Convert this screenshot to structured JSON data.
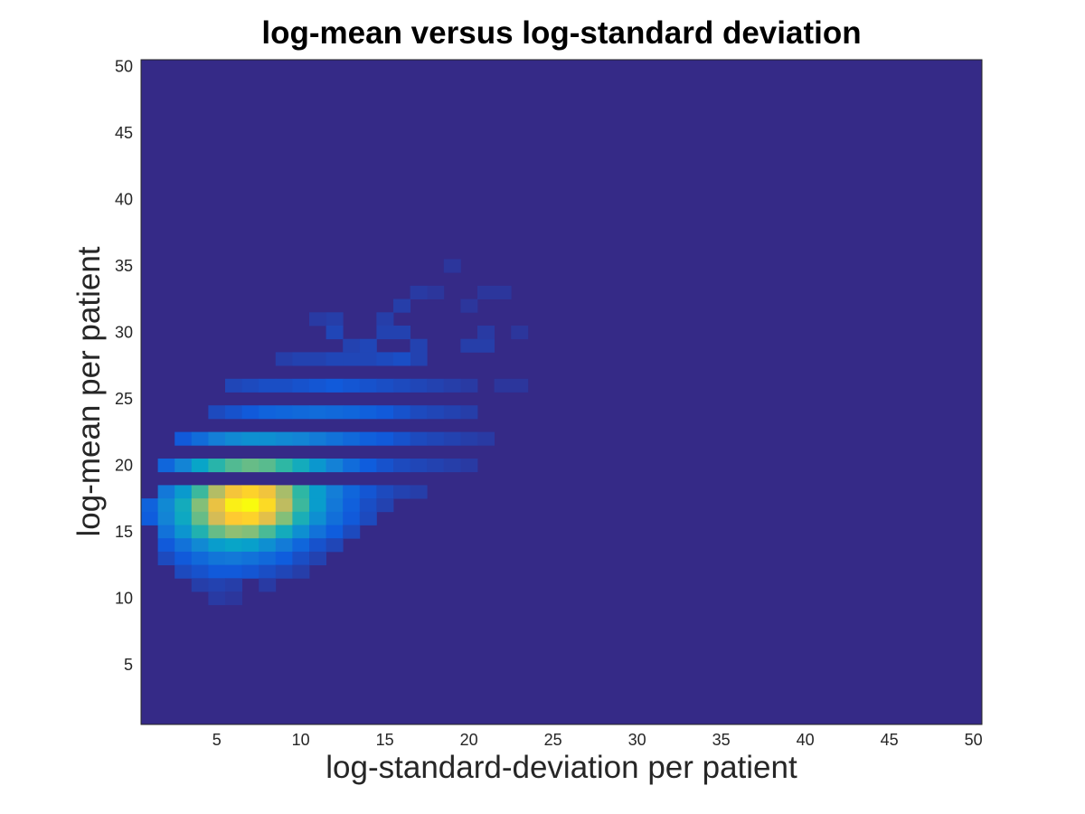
{
  "chart_data": {
    "type": "heatmap",
    "title": "log-mean versus log-standard deviation",
    "xlabel": "log-standard-deviation per patient",
    "ylabel": "log-mean per patient",
    "xlim": [
      0.5,
      50.5
    ],
    "ylim": [
      0.5,
      50.5
    ],
    "xticks": [
      5,
      10,
      15,
      20,
      25,
      30,
      35,
      40,
      45,
      50
    ],
    "yticks": [
      5,
      10,
      15,
      20,
      25,
      30,
      35,
      40,
      45,
      50
    ],
    "colormap": "parula",
    "colormap_stops": [
      "#352a87",
      "#0f5cdd",
      "#1481d6",
      "#06a4ca",
      "#2eb7a4",
      "#87bf77",
      "#d1bb59",
      "#fec832",
      "#f9fb0e"
    ],
    "value_range": [
      0,
      1
    ],
    "background_value": 0,
    "grid": false,
    "cells": [
      [
        18,
        33,
        0.03
      ],
      [
        19,
        35,
        0.03
      ],
      [
        20,
        32,
        0.03
      ],
      [
        21,
        33,
        0.03
      ],
      [
        22,
        33,
        0.03
      ],
      [
        23,
        30,
        0.03
      ],
      [
        12,
        31,
        0.05
      ],
      [
        15,
        31,
        0.05
      ],
      [
        16,
        32,
        0.05
      ],
      [
        17,
        33,
        0.04
      ],
      [
        15,
        30,
        0.06
      ],
      [
        16,
        30,
        0.06
      ],
      [
        17,
        29,
        0.06
      ],
      [
        12,
        30,
        0.07
      ],
      [
        11,
        31,
        0.04
      ],
      [
        20,
        29,
        0.05
      ],
      [
        21,
        29,
        0.05
      ],
      [
        21,
        30,
        0.04
      ],
      [
        17,
        28,
        0.06
      ],
      [
        9,
        28,
        0.05
      ],
      [
        10,
        28,
        0.06
      ],
      [
        11,
        28,
        0.06
      ],
      [
        12,
        28,
        0.07
      ],
      [
        13,
        28,
        0.07
      ],
      [
        14,
        28,
        0.07
      ],
      [
        15,
        28,
        0.08
      ],
      [
        16,
        28,
        0.09
      ],
      [
        13,
        29,
        0.06
      ],
      [
        14,
        29,
        0.07
      ],
      [
        6,
        26,
        0.07
      ],
      [
        7,
        26,
        0.08
      ],
      [
        8,
        26,
        0.09
      ],
      [
        9,
        26,
        0.09
      ],
      [
        10,
        26,
        0.1
      ],
      [
        11,
        26,
        0.11
      ],
      [
        12,
        26,
        0.12
      ],
      [
        13,
        26,
        0.11
      ],
      [
        14,
        26,
        0.1
      ],
      [
        15,
        26,
        0.09
      ],
      [
        16,
        26,
        0.08
      ],
      [
        17,
        26,
        0.07
      ],
      [
        18,
        26,
        0.06
      ],
      [
        19,
        26,
        0.05
      ],
      [
        20,
        26,
        0.04
      ],
      [
        22,
        26,
        0.03
      ],
      [
        23,
        26,
        0.03
      ],
      [
        5,
        24,
        0.08
      ],
      [
        6,
        24,
        0.1
      ],
      [
        7,
        24,
        0.12
      ],
      [
        8,
        24,
        0.15
      ],
      [
        9,
        24,
        0.16
      ],
      [
        10,
        24,
        0.17
      ],
      [
        11,
        24,
        0.18
      ],
      [
        12,
        24,
        0.17
      ],
      [
        13,
        24,
        0.16
      ],
      [
        14,
        24,
        0.14
      ],
      [
        15,
        24,
        0.12
      ],
      [
        16,
        24,
        0.1
      ],
      [
        17,
        24,
        0.08
      ],
      [
        18,
        24,
        0.07
      ],
      [
        19,
        24,
        0.06
      ],
      [
        20,
        24,
        0.05
      ],
      [
        3,
        22,
        0.12
      ],
      [
        4,
        22,
        0.18
      ],
      [
        5,
        22,
        0.24
      ],
      [
        6,
        22,
        0.28
      ],
      [
        7,
        22,
        0.3
      ],
      [
        8,
        22,
        0.3
      ],
      [
        9,
        22,
        0.28
      ],
      [
        10,
        22,
        0.26
      ],
      [
        11,
        22,
        0.23
      ],
      [
        12,
        22,
        0.2
      ],
      [
        13,
        22,
        0.17
      ],
      [
        14,
        22,
        0.14
      ],
      [
        15,
        22,
        0.12
      ],
      [
        16,
        22,
        0.1
      ],
      [
        17,
        22,
        0.08
      ],
      [
        18,
        22,
        0.07
      ],
      [
        19,
        22,
        0.06
      ],
      [
        20,
        22,
        0.05
      ],
      [
        21,
        22,
        0.04
      ],
      [
        2,
        20,
        0.16
      ],
      [
        3,
        20,
        0.26
      ],
      [
        4,
        20,
        0.38
      ],
      [
        5,
        20,
        0.48
      ],
      [
        6,
        20,
        0.55
      ],
      [
        7,
        20,
        0.58
      ],
      [
        8,
        20,
        0.56
      ],
      [
        9,
        20,
        0.5
      ],
      [
        10,
        20,
        0.42
      ],
      [
        11,
        20,
        0.33
      ],
      [
        12,
        20,
        0.25
      ],
      [
        13,
        20,
        0.18
      ],
      [
        14,
        20,
        0.13
      ],
      [
        15,
        20,
        0.1
      ],
      [
        16,
        20,
        0.08
      ],
      [
        17,
        20,
        0.07
      ],
      [
        18,
        20,
        0.06
      ],
      [
        19,
        20,
        0.05
      ],
      [
        20,
        20,
        0.04
      ],
      [
        2,
        18,
        0.22
      ],
      [
        3,
        18,
        0.34
      ],
      [
        4,
        18,
        0.52
      ],
      [
        5,
        18,
        0.7
      ],
      [
        6,
        18,
        0.85
      ],
      [
        7,
        18,
        0.9
      ],
      [
        8,
        18,
        0.84
      ],
      [
        9,
        18,
        0.68
      ],
      [
        10,
        18,
        0.5
      ],
      [
        11,
        18,
        0.35
      ],
      [
        12,
        18,
        0.24
      ],
      [
        13,
        18,
        0.16
      ],
      [
        14,
        18,
        0.11
      ],
      [
        15,
        18,
        0.08
      ],
      [
        16,
        18,
        0.06
      ],
      [
        17,
        18,
        0.05
      ],
      [
        1,
        17,
        0.15
      ],
      [
        2,
        17,
        0.28
      ],
      [
        3,
        17,
        0.42
      ],
      [
        4,
        17,
        0.62
      ],
      [
        5,
        17,
        0.82
      ],
      [
        6,
        17,
        0.97
      ],
      [
        7,
        17,
        1.0
      ],
      [
        8,
        17,
        0.92
      ],
      [
        9,
        17,
        0.72
      ],
      [
        10,
        17,
        0.52
      ],
      [
        11,
        17,
        0.35
      ],
      [
        12,
        17,
        0.22
      ],
      [
        13,
        17,
        0.14
      ],
      [
        14,
        17,
        0.09
      ],
      [
        15,
        17,
        0.06
      ],
      [
        1,
        16,
        0.13
      ],
      [
        2,
        16,
        0.26
      ],
      [
        3,
        16,
        0.4
      ],
      [
        4,
        16,
        0.58
      ],
      [
        5,
        16,
        0.76
      ],
      [
        6,
        16,
        0.88
      ],
      [
        7,
        16,
        0.9
      ],
      [
        8,
        16,
        0.8
      ],
      [
        9,
        16,
        0.62
      ],
      [
        10,
        16,
        0.44
      ],
      [
        11,
        16,
        0.3
      ],
      [
        12,
        16,
        0.19
      ],
      [
        13,
        16,
        0.12
      ],
      [
        14,
        16,
        0.08
      ],
      [
        2,
        15,
        0.2
      ],
      [
        3,
        15,
        0.32
      ],
      [
        4,
        15,
        0.46
      ],
      [
        5,
        15,
        0.58
      ],
      [
        6,
        15,
        0.64
      ],
      [
        7,
        15,
        0.62
      ],
      [
        8,
        15,
        0.54
      ],
      [
        9,
        15,
        0.42
      ],
      [
        10,
        15,
        0.3
      ],
      [
        11,
        15,
        0.2
      ],
      [
        12,
        15,
        0.13
      ],
      [
        13,
        15,
        0.08
      ],
      [
        2,
        14,
        0.12
      ],
      [
        3,
        14,
        0.2
      ],
      [
        4,
        14,
        0.28
      ],
      [
        5,
        14,
        0.35
      ],
      [
        6,
        14,
        0.38
      ],
      [
        7,
        14,
        0.36
      ],
      [
        8,
        14,
        0.3
      ],
      [
        9,
        14,
        0.23
      ],
      [
        10,
        14,
        0.16
      ],
      [
        11,
        14,
        0.1
      ],
      [
        12,
        14,
        0.07
      ],
      [
        2,
        13,
        0.08
      ],
      [
        3,
        13,
        0.12
      ],
      [
        4,
        13,
        0.17
      ],
      [
        5,
        13,
        0.21
      ],
      [
        6,
        13,
        0.22
      ],
      [
        7,
        13,
        0.2
      ],
      [
        8,
        13,
        0.17
      ],
      [
        9,
        13,
        0.13
      ],
      [
        10,
        13,
        0.09
      ],
      [
        11,
        13,
        0.06
      ],
      [
        3,
        12,
        0.08
      ],
      [
        4,
        12,
        0.1
      ],
      [
        5,
        12,
        0.12
      ],
      [
        6,
        12,
        0.12
      ],
      [
        7,
        12,
        0.11
      ],
      [
        8,
        12,
        0.09
      ],
      [
        9,
        12,
        0.07
      ],
      [
        10,
        12,
        0.05
      ],
      [
        4,
        11,
        0.05
      ],
      [
        5,
        11,
        0.06
      ],
      [
        6,
        11,
        0.05
      ],
      [
        8,
        11,
        0.04
      ],
      [
        5,
        10,
        0.04
      ],
      [
        6,
        10,
        0.03
      ]
    ]
  }
}
